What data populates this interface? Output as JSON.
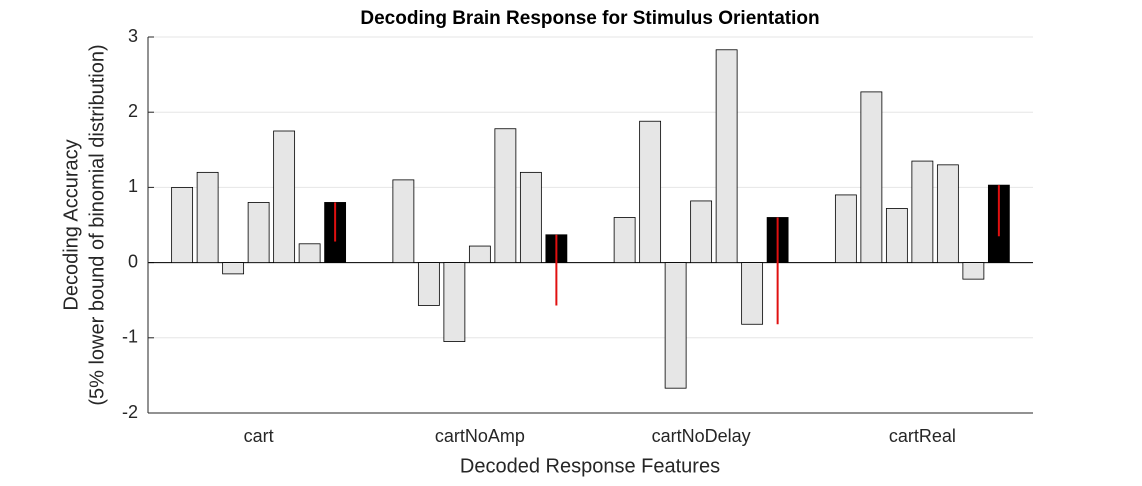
{
  "chart_data": {
    "type": "bar",
    "title": "Decoding Brain Response for Stimulus Orientation",
    "x_label": "Decoded Response Features",
    "y_label": [
      "Decoding Accuracy",
      "(5% lower bound of binomial distribution)"
    ],
    "categories": [
      "cart",
      "cartNoAmp",
      "cartNoDelay",
      "cartReal"
    ],
    "series": [
      {
        "color": "#e6e6e6",
        "values": [
          1.0,
          1.1,
          0.6,
          0.9
        ]
      },
      {
        "color": "#e6e6e6",
        "values": [
          1.2,
          -0.57,
          1.88,
          2.27
        ]
      },
      {
        "color": "#e6e6e6",
        "values": [
          -0.15,
          -1.05,
          -1.67,
          0.72
        ]
      },
      {
        "color": "#e6e6e6",
        "values": [
          0.8,
          0.22,
          0.82,
          1.35
        ]
      },
      {
        "color": "#e6e6e6",
        "values": [
          1.75,
          1.78,
          2.83,
          1.3
        ]
      },
      {
        "color": "#e6e6e6",
        "values": [
          0.25,
          1.2,
          -0.82,
          -0.22
        ]
      },
      {
        "color": "#000000",
        "values": [
          0.8,
          0.37,
          0.6,
          1.03
        ],
        "errors_lower": [
          0.52,
          0.94,
          1.42,
          0.68
        ],
        "error_color": "#e01010"
      }
    ],
    "ylim": [
      -2,
      3
    ],
    "yticks": [
      -2,
      -1,
      0,
      1,
      2,
      3
    ],
    "grid": true
  }
}
